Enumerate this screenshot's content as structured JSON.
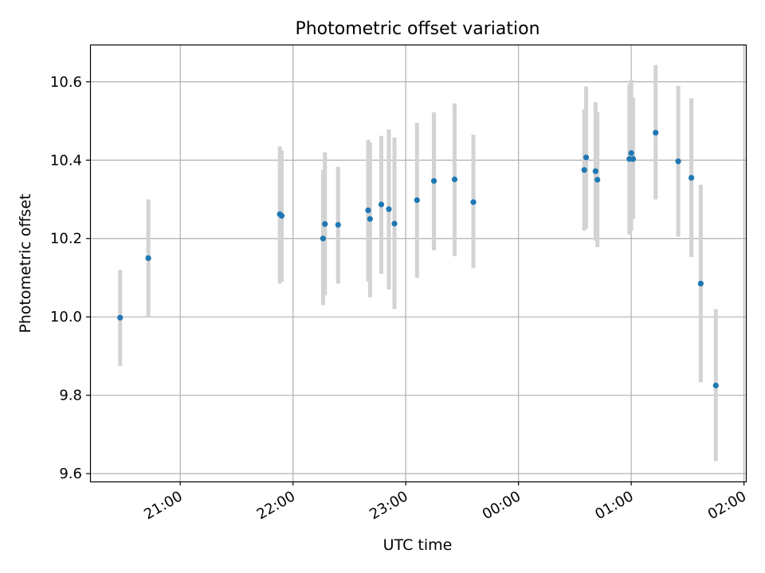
{
  "chart_data": {
    "type": "scatter",
    "title": "Photometric offset variation",
    "xlabel": "UTC time",
    "ylabel": "Photometric offset",
    "x_axis": "time",
    "x_ticks": [
      "21:00",
      "22:00",
      "23:00",
      "00:00",
      "01:00",
      "02:00"
    ],
    "x_tick_values": [
      "2020-01-01T21:00",
      "2020-01-01T22:00",
      "2020-01-01T23:00",
      "2020-01-02T00:00",
      "2020-01-02T01:00",
      "2020-01-02T02:00"
    ],
    "xlim": [
      "2020-01-01T20:12",
      "2020-01-02T02:01"
    ],
    "y_ticks": [
      "9.6",
      "9.8",
      "10.0",
      "10.2",
      "10.4",
      "10.6"
    ],
    "ylim": [
      9.58,
      10.695
    ],
    "grid": true,
    "marker_color": "#1f77b4",
    "errorbar_color": "#d3d3d3",
    "points": [
      {
        "x": "2020-01-01T20:28",
        "y": 9.998,
        "ymin": 9.875,
        "ymax": 10.12
      },
      {
        "x": "2020-01-01T20:43",
        "y": 10.15,
        "ymin": 9.998,
        "ymax": 10.3
      },
      {
        "x": "2020-01-01T21:53",
        "y": 10.262,
        "ymin": 10.085,
        "ymax": 10.435
      },
      {
        "x": "2020-01-01T21:54",
        "y": 10.258,
        "ymin": 10.09,
        "ymax": 10.425
      },
      {
        "x": "2020-01-01T22:16",
        "y": 10.2,
        "ymin": 10.03,
        "ymax": 10.375
      },
      {
        "x": "2020-01-01T22:17",
        "y": 10.237,
        "ymin": 10.055,
        "ymax": 10.42
      },
      {
        "x": "2020-01-01T22:24",
        "y": 10.235,
        "ymin": 10.085,
        "ymax": 10.383
      },
      {
        "x": "2020-01-01T22:40",
        "y": 10.272,
        "ymin": 10.09,
        "ymax": 10.452
      },
      {
        "x": "2020-01-01T22:41",
        "y": 10.25,
        "ymin": 10.05,
        "ymax": 10.445
      },
      {
        "x": "2020-01-01T22:47",
        "y": 10.287,
        "ymin": 10.11,
        "ymax": 10.462
      },
      {
        "x": "2020-01-01T22:51",
        "y": 10.275,
        "ymin": 10.07,
        "ymax": 10.478
      },
      {
        "x": "2020-01-01T22:54",
        "y": 10.238,
        "ymin": 10.02,
        "ymax": 10.458
      },
      {
        "x": "2020-01-01T23:06",
        "y": 10.298,
        "ymin": 10.1,
        "ymax": 10.495
      },
      {
        "x": "2020-01-01T23:15",
        "y": 10.347,
        "ymin": 10.17,
        "ymax": 10.522
      },
      {
        "x": "2020-01-01T23:26",
        "y": 10.351,
        "ymin": 10.155,
        "ymax": 10.545
      },
      {
        "x": "2020-01-01T23:36",
        "y": 10.293,
        "ymin": 10.125,
        "ymax": 10.465
      },
      {
        "x": "2020-01-02T00:35",
        "y": 10.375,
        "ymin": 10.22,
        "ymax": 10.53
      },
      {
        "x": "2020-01-02T00:36",
        "y": 10.407,
        "ymin": 10.225,
        "ymax": 10.588
      },
      {
        "x": "2020-01-02T00:41",
        "y": 10.372,
        "ymin": 10.195,
        "ymax": 10.548
      },
      {
        "x": "2020-01-02T00:42",
        "y": 10.35,
        "ymin": 10.178,
        "ymax": 10.522
      },
      {
        "x": "2020-01-02T00:59",
        "y": 10.403,
        "ymin": 10.21,
        "ymax": 10.595
      },
      {
        "x": "2020-01-02T01:00",
        "y": 10.418,
        "ymin": 10.22,
        "ymax": 10.605
      },
      {
        "x": "2020-01-02T01:01",
        "y": 10.403,
        "ymin": 10.25,
        "ymax": 10.56
      },
      {
        "x": "2020-01-02T01:13",
        "y": 10.47,
        "ymin": 10.3,
        "ymax": 10.643
      },
      {
        "x": "2020-01-02T01:25",
        "y": 10.397,
        "ymin": 10.205,
        "ymax": 10.59
      },
      {
        "x": "2020-01-02T01:32",
        "y": 10.355,
        "ymin": 10.153,
        "ymax": 10.558
      },
      {
        "x": "2020-01-02T01:37",
        "y": 10.085,
        "ymin": 9.833,
        "ymax": 10.337
      },
      {
        "x": "2020-01-02T01:45",
        "y": 9.825,
        "ymin": 9.632,
        "ymax": 10.02
      }
    ]
  }
}
